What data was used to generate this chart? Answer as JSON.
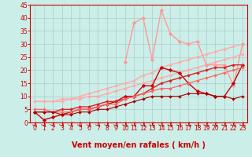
{
  "xlabel": "Vent moyen/en rafales ( km/h )",
  "xlim": [
    -0.5,
    23.5
  ],
  "ylim": [
    0,
    45
  ],
  "xticks": [
    0,
    1,
    2,
    3,
    4,
    5,
    6,
    7,
    8,
    9,
    10,
    11,
    12,
    13,
    14,
    15,
    16,
    17,
    18,
    19,
    20,
    21,
    22,
    23
  ],
  "yticks": [
    0,
    5,
    10,
    15,
    20,
    25,
    30,
    35,
    40,
    45
  ],
  "background_color": "#cceee8",
  "grid_color": "#aacccc",
  "lines": [
    {
      "x": [
        0,
        1,
        2,
        3,
        4,
        5,
        6,
        7,
        8,
        9,
        10,
        11,
        12,
        13,
        14,
        15,
        16,
        17,
        18,
        19,
        20,
        21,
        22,
        23
      ],
      "y": [
        8,
        8,
        8,
        8,
        9,
        9,
        10,
        10,
        11,
        12,
        13,
        14,
        15,
        16,
        17,
        18,
        19,
        20,
        21,
        22,
        23,
        24,
        25,
        26
      ],
      "color": "#ffaaaa",
      "lw": 1.0,
      "marker": "D",
      "ms": 2.0
    },
    {
      "x": [
        0,
        1,
        2,
        3,
        4,
        5,
        6,
        7,
        8,
        9,
        10,
        11,
        12,
        13,
        14,
        15,
        16,
        17,
        18,
        19,
        20,
        21,
        22,
        23
      ],
      "y": [
        8,
        8,
        8,
        9,
        9,
        10,
        11,
        12,
        13,
        14,
        15,
        16,
        18,
        19,
        21,
        22,
        23,
        24,
        25,
        26,
        27,
        28,
        29,
        30
      ],
      "color": "#ffaaaa",
      "lw": 1.0,
      "marker": "D",
      "ms": 2.0
    },
    {
      "x": [
        10,
        11,
        12,
        13,
        14,
        15,
        16,
        17,
        18,
        19,
        20,
        21,
        22,
        23
      ],
      "y": [
        23,
        38,
        40,
        24,
        43,
        34,
        31,
        30,
        31,
        22,
        22,
        22,
        14,
        30
      ],
      "color": "#ff9999",
      "lw": 1.0,
      "marker": "D",
      "ms": 2.5
    },
    {
      "x": [
        0,
        1,
        2,
        3,
        4,
        5,
        6,
        7,
        8,
        9,
        10,
        11,
        12,
        13,
        14,
        15,
        16,
        17,
        18,
        19,
        20,
        21,
        22,
        23
      ],
      "y": [
        4,
        1,
        2,
        3,
        4,
        5,
        5,
        6,
        7,
        8,
        10,
        10,
        14,
        14,
        21,
        20,
        19,
        15,
        12,
        11,
        10,
        10,
        15,
        22
      ],
      "color": "#cc0000",
      "lw": 1.0,
      "marker": "D",
      "ms": 2.5
    },
    {
      "x": [
        0,
        1,
        2,
        3,
        4,
        5,
        6,
        7,
        8,
        9,
        10,
        11,
        12,
        13,
        14,
        15,
        16,
        17,
        18,
        19,
        20,
        21,
        22,
        23
      ],
      "y": [
        4,
        4,
        4,
        5,
        5,
        6,
        6,
        7,
        8,
        8,
        9,
        10,
        11,
        13,
        15,
        16,
        17,
        18,
        19,
        20,
        21,
        21,
        22,
        22
      ],
      "color": "#dd2222",
      "lw": 1.0,
      "marker": "D",
      "ms": 2.0
    },
    {
      "x": [
        0,
        1,
        2,
        3,
        4,
        5,
        6,
        7,
        8,
        9,
        10,
        11,
        12,
        13,
        14,
        15,
        16,
        17,
        18,
        19,
        20,
        21,
        22,
        23
      ],
      "y": [
        5,
        5,
        4,
        4,
        4,
        5,
        5,
        6,
        7,
        7,
        9,
        10,
        11,
        12,
        13,
        13,
        14,
        15,
        16,
        17,
        18,
        19,
        20,
        21
      ],
      "color": "#ff6666",
      "lw": 0.9,
      "marker": "D",
      "ms": 2.0
    },
    {
      "x": [
        0,
        1,
        2,
        3,
        4,
        5,
        6,
        7,
        8,
        9,
        10,
        11,
        12,
        13,
        14,
        15,
        16,
        17,
        18,
        19,
        20,
        21,
        22,
        23
      ],
      "y": [
        4,
        4,
        4,
        3,
        3,
        4,
        4,
        5,
        5,
        6,
        7,
        8,
        9,
        10,
        10,
        10,
        10,
        11,
        11,
        11,
        10,
        10,
        9,
        10
      ],
      "color": "#aa0000",
      "lw": 0.8,
      "marker": "D",
      "ms": 2.0
    }
  ],
  "axis_color": "#cc0000",
  "tick_color": "#cc0000",
  "tick_fontsize": 5.5,
  "xlabel_fontsize": 7,
  "xlabel_color": "#cc0000",
  "arrow_color": "#cc0000"
}
